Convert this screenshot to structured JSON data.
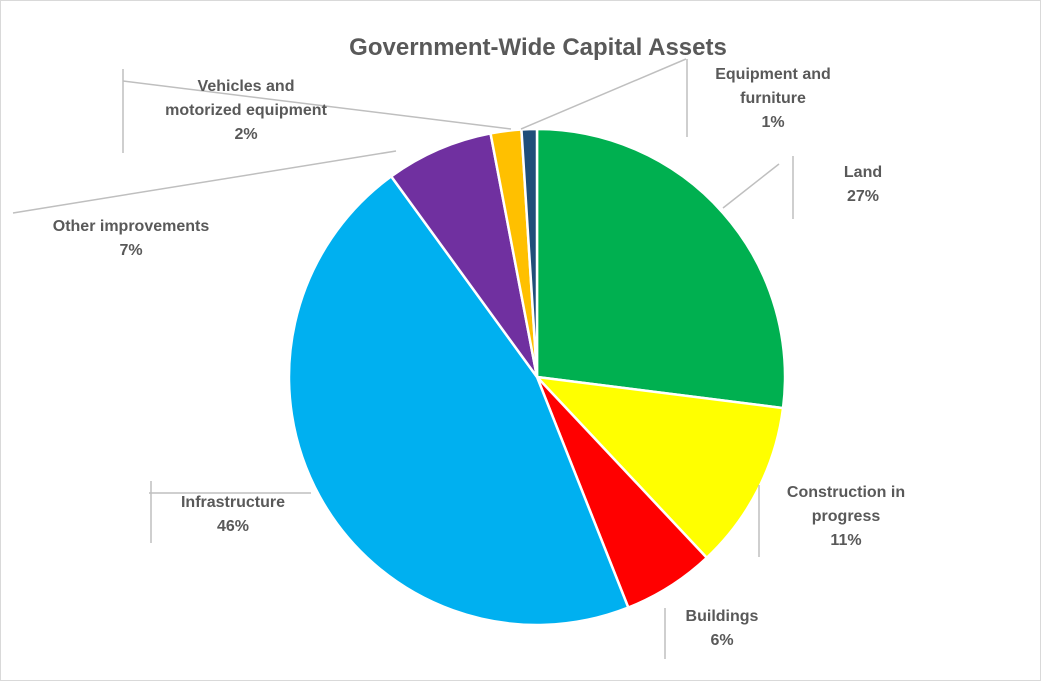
{
  "chart_data": {
    "type": "pie",
    "title": "Government-Wide Capital Assets",
    "legend": "none",
    "data_label_format": "category and percentage",
    "slices": [
      {
        "label": "Land",
        "label_lines": [
          "Land"
        ],
        "value": 27,
        "display": "27%",
        "color": "#00b050"
      },
      {
        "label": "Construction in progress",
        "label_lines": [
          "Construction in",
          "progress"
        ],
        "value": 11,
        "display": "11%",
        "color": "#ffff00"
      },
      {
        "label": "Buildings",
        "label_lines": [
          "Buildings"
        ],
        "value": 6,
        "display": "6%",
        "color": "#ff0000"
      },
      {
        "label": "Infrastructure",
        "label_lines": [
          "Infrastructure"
        ],
        "value": 46,
        "display": "46%",
        "color": "#00b0f0"
      },
      {
        "label": "Other improvements",
        "label_lines": [
          "Other improvements"
        ],
        "value": 7,
        "display": "7%",
        "color": "#7030a0"
      },
      {
        "label": "Vehicles and motorized equipment",
        "label_lines": [
          "Vehicles and",
          "motorized equipment"
        ],
        "value": 2,
        "display": "2%",
        "color": "#ffc000"
      },
      {
        "label": "Equipment and furniture",
        "label_lines": [
          "Equipment and",
          "furniture"
        ],
        "value": 1,
        "display": "1%",
        "color": "#1f4e79"
      }
    ]
  }
}
